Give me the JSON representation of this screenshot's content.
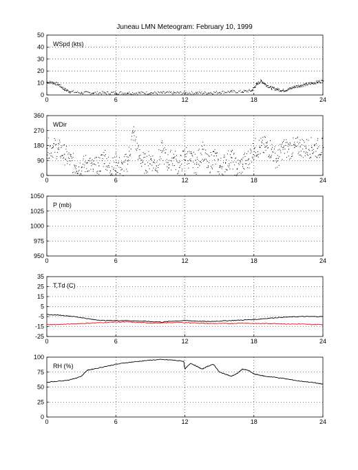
{
  "figure": {
    "title": "Juneau LMN Meteogram:  February 10, 1999"
  },
  "chart_data": [
    {
      "type": "line",
      "label": "WSpd (kts)",
      "xlim": [
        0,
        24
      ],
      "xticks": [
        0,
        6,
        12,
        18,
        24
      ],
      "ylim": [
        0,
        50
      ],
      "yticks": [
        0,
        10,
        20,
        30,
        40,
        50
      ],
      "grid": true,
      "series": [
        {
          "color": "#000000",
          "style": "dots",
          "points": [
            [
              0,
              11
            ],
            [
              0.5,
              10.5
            ],
            [
              1,
              9
            ],
            [
              1.5,
              5
            ],
            [
              2,
              3
            ],
            [
              3,
              2
            ],
            [
              4,
              2
            ],
            [
              5,
              2
            ],
            [
              6,
              2
            ],
            [
              7,
              2
            ],
            [
              8,
              2
            ],
            [
              9,
              2
            ],
            [
              10,
              2
            ],
            [
              11,
              2
            ],
            [
              12,
              2
            ],
            [
              13,
              2
            ],
            [
              14,
              2
            ],
            [
              15,
              2.5
            ],
            [
              16,
              3
            ],
            [
              17,
              3
            ],
            [
              17.8,
              4
            ],
            [
              18.2,
              9
            ],
            [
              18.6,
              12
            ],
            [
              19,
              9
            ],
            [
              19.5,
              6
            ],
            [
              20,
              5
            ],
            [
              20.5,
              4
            ],
            [
              21,
              5
            ],
            [
              21.5,
              7
            ],
            [
              22,
              8
            ],
            [
              22.5,
              9
            ],
            [
              23,
              10
            ],
            [
              23.5,
              11
            ],
            [
              24,
              12
            ]
          ]
        }
      ]
    },
    {
      "type": "scatter",
      "label": "WDir",
      "xlim": [
        0,
        24
      ],
      "xticks": [
        0,
        6,
        12,
        18,
        24
      ],
      "ylim": [
        0,
        360
      ],
      "yticks": [
        0,
        90,
        180,
        270,
        360
      ],
      "grid": true,
      "series": [
        {
          "color": "#000000",
          "style": "dots",
          "points": [
            [
              0,
              165
            ],
            [
              0.5,
              170
            ],
            [
              1,
              160
            ],
            [
              1.5,
              130
            ],
            [
              2,
              90
            ],
            [
              2.5,
              60
            ],
            [
              3,
              50
            ],
            [
              3.5,
              80
            ],
            [
              4,
              40
            ],
            [
              4.5,
              60
            ],
            [
              5,
              120
            ],
            [
              5.5,
              30
            ],
            [
              6,
              80
            ],
            [
              6.5,
              40
            ],
            [
              7,
              90
            ],
            [
              7.5,
              260
            ],
            [
              8,
              120
            ],
            [
              8.5,
              70
            ],
            [
              9,
              100
            ],
            [
              9.5,
              60
            ],
            [
              10,
              150
            ],
            [
              10.5,
              80
            ],
            [
              11,
              110
            ],
            [
              11.5,
              50
            ],
            [
              12,
              130
            ],
            [
              12.5,
              90
            ],
            [
              13,
              70
            ],
            [
              13.5,
              160
            ],
            [
              14,
              60
            ],
            [
              14.5,
              120
            ],
            [
              15,
              50
            ],
            [
              15.5,
              80
            ],
            [
              16,
              110
            ],
            [
              16.5,
              40
            ],
            [
              17,
              70
            ],
            [
              17.5,
              100
            ],
            [
              18,
              165
            ],
            [
              18.5,
              170
            ],
            [
              19,
              175
            ],
            [
              19.5,
              160
            ],
            [
              20,
              90
            ],
            [
              20.5,
              170
            ],
            [
              21,
              160
            ],
            [
              21.5,
              170
            ],
            [
              22,
              175
            ],
            [
              22.5,
              165
            ],
            [
              23,
              170
            ],
            [
              23.5,
              165
            ],
            [
              24,
              170
            ]
          ]
        }
      ]
    },
    {
      "type": "line",
      "label": "P (mb)",
      "xlim": [
        0,
        24
      ],
      "xticks": [
        0,
        6,
        12,
        18,
        24
      ],
      "ylim": [
        950,
        1050
      ],
      "yticks": [
        950,
        975,
        1000,
        1025,
        1050
      ],
      "grid": true,
      "series": []
    },
    {
      "type": "line",
      "label": "T,Td (C)",
      "xlim": [
        0,
        24
      ],
      "xticks": [
        0,
        6,
        12,
        18,
        24
      ],
      "ylim": [
        -25,
        35
      ],
      "yticks": [
        -25,
        -15,
        -5,
        5,
        15,
        25,
        35
      ],
      "grid": true,
      "series": [
        {
          "color": "#000000",
          "style": "line",
          "points": [
            [
              0,
              -3
            ],
            [
              1,
              -3.5
            ],
            [
              2,
              -4.5
            ],
            [
              3,
              -6
            ],
            [
              4,
              -8
            ],
            [
              5,
              -9
            ],
            [
              6,
              -9
            ],
            [
              7,
              -9
            ],
            [
              8,
              -9.5
            ],
            [
              9,
              -10
            ],
            [
              10,
              -10.5
            ],
            [
              11,
              -9.5
            ],
            [
              12,
              -9
            ],
            [
              13,
              -9.5
            ],
            [
              14,
              -10
            ],
            [
              15,
              -9.5
            ],
            [
              16,
              -9
            ],
            [
              17,
              -8.5
            ],
            [
              18,
              -8
            ],
            [
              19,
              -7
            ],
            [
              20,
              -6
            ],
            [
              21,
              -5.5
            ],
            [
              22,
              -5
            ],
            [
              23,
              -5
            ],
            [
              24,
              -5
            ]
          ]
        },
        {
          "color": "#ff0000",
          "style": "line",
          "points": [
            [
              0,
              -13
            ],
            [
              1,
              -13
            ],
            [
              2,
              -12.5
            ],
            [
              3,
              -12
            ],
            [
              4,
              -11.5
            ],
            [
              5,
              -11
            ],
            [
              6,
              -10.5
            ],
            [
              7,
              -10.5
            ],
            [
              8,
              -11
            ],
            [
              9,
              -11.5
            ],
            [
              10,
              -11.5
            ],
            [
              11,
              -11
            ],
            [
              12,
              -11
            ],
            [
              13,
              -11.5
            ],
            [
              14,
              -12
            ],
            [
              15,
              -12
            ],
            [
              16,
              -12
            ],
            [
              17,
              -11.5
            ],
            [
              18,
              -12
            ],
            [
              19,
              -12
            ],
            [
              20,
              -12
            ],
            [
              21,
              -12.5
            ],
            [
              22,
              -12.5
            ],
            [
              23,
              -13
            ],
            [
              24,
              -13
            ]
          ]
        }
      ]
    },
    {
      "type": "line",
      "label": "RH (%)",
      "xlim": [
        0,
        24
      ],
      "xticks": [
        0,
        6,
        12,
        18,
        24
      ],
      "ylim": [
        0,
        100
      ],
      "yticks": [
        0,
        25,
        50,
        75,
        100
      ],
      "grid": true,
      "series": [
        {
          "color": "#000000",
          "style": "line",
          "points": [
            [
              0,
              58
            ],
            [
              1,
              60
            ],
            [
              2,
              62
            ],
            [
              3,
              68
            ],
            [
              3.5,
              78
            ],
            [
              4,
              80
            ],
            [
              5,
              84
            ],
            [
              6,
              88
            ],
            [
              7,
              91
            ],
            [
              8,
              93
            ],
            [
              9,
              95
            ],
            [
              10,
              96
            ],
            [
              11,
              95
            ],
            [
              11.9,
              93
            ],
            [
              12,
              80
            ],
            [
              12.5,
              90
            ],
            [
              13,
              85
            ],
            [
              13.5,
              80
            ],
            [
              14,
              85
            ],
            [
              14.5,
              88
            ],
            [
              15,
              75
            ],
            [
              15.5,
              72
            ],
            [
              16,
              68
            ],
            [
              16.5,
              72
            ],
            [
              17,
              80
            ],
            [
              17.5,
              78
            ],
            [
              18,
              72
            ],
            [
              18.5,
              70
            ],
            [
              19,
              68
            ],
            [
              20,
              66
            ],
            [
              21,
              63
            ],
            [
              22,
              60
            ],
            [
              23,
              58
            ],
            [
              24,
              55
            ]
          ]
        }
      ]
    }
  ]
}
